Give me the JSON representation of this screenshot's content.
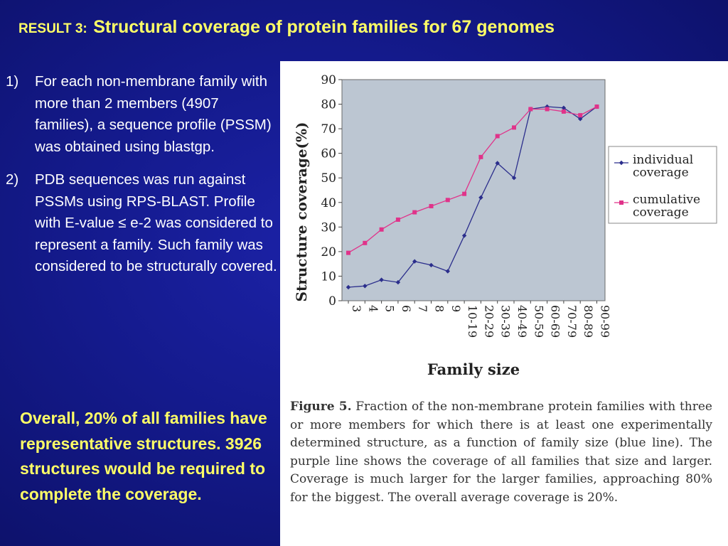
{
  "slide": {
    "title_tag": "RESULT 3:",
    "title_main": "Structural coverage of protein families for 67 genomes",
    "points": [
      {
        "num": "1)",
        "text": "For each non-membrane family with more than 2 members (4907 families), a sequence profile (PSSM) was obtained using blastgp."
      },
      {
        "num": "2)",
        "text": "PDB sequences was run against PSSMs using RPS-BLAST. Profile with E-value ≤ e-2 was considered to represent a family. Such family was considered to be structurally covered."
      }
    ],
    "summary": "Overall, 20% of all families have representative structures. 3926 structures would be required to complete the coverage."
  },
  "caption": {
    "label": "Figure 5.",
    "text": "Fraction of the non-membrane protein families with three or more members for which there is at least one experimentally determined structure, as a function of family size (blue line). The purple line shows the coverage of all families that size and larger. Coverage is much larger for the larger families, approaching 80% for the biggest. The overall average coverage is 20%."
  },
  "chart_data": {
    "type": "line",
    "xlabel": "Family size",
    "ylabel": "Structure coverage(%)",
    "ylim": [
      0,
      90
    ],
    "yticks": [
      0,
      10,
      20,
      30,
      40,
      50,
      60,
      70,
      80,
      90
    ],
    "categories": [
      "3",
      "4",
      "5",
      "6",
      "7",
      "8",
      "9",
      "10-19",
      "20-29",
      "30-39",
      "40-49",
      "50-59",
      "60-69",
      "70-79",
      "80-89",
      "90-99"
    ],
    "grid": false,
    "plot_background": "#bcc6d2",
    "legend_position": "right",
    "series": [
      {
        "name": "individual coverage",
        "color": "#2b2e8c",
        "marker": "diamond",
        "values": [
          5.5,
          6,
          8.5,
          7.5,
          16,
          14.5,
          12,
          26.5,
          42,
          56,
          50,
          78,
          79,
          78.5,
          74,
          79
        ]
      },
      {
        "name": "cumulative coverage",
        "color": "#e0338a",
        "marker": "square",
        "values": [
          19.5,
          23.5,
          29,
          33,
          36,
          38.5,
          41,
          43.5,
          58.5,
          67,
          70.5,
          78,
          78,
          77,
          75.5,
          79
        ]
      }
    ]
  }
}
